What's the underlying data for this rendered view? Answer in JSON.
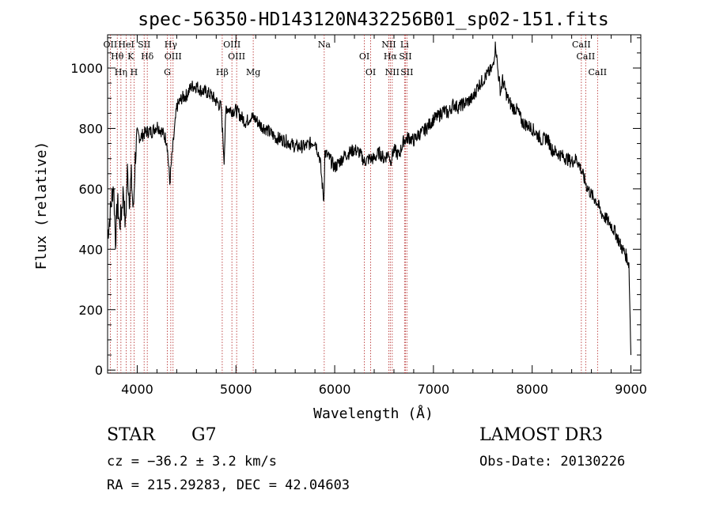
{
  "chart_data": {
    "type": "line",
    "title": "spec-56350-HD143120N432256B01_sp02-151.fits",
    "xlabel": "Wavelength (Å)",
    "ylabel": "Flux (relative)",
    "xlim": [
      3700,
      9100
    ],
    "ylim": [
      -10,
      1110
    ],
    "xticks": [
      4000,
      5000,
      6000,
      7000,
      8000,
      9000
    ],
    "yticks": [
      0,
      200,
      400,
      600,
      800,
      1000
    ],
    "grid": false,
    "series": [
      {
        "x": [
          3700,
          3720,
          3740,
          3760,
          3780,
          3800,
          3820,
          3840,
          3860,
          3880,
          3900,
          3920,
          3940,
          3960,
          3980,
          4000,
          4030,
          4060,
          4100,
          4150,
          4200,
          4250,
          4300,
          4330,
          4350,
          4400,
          4450,
          4500,
          4550,
          4600,
          4650,
          4700,
          4750,
          4800,
          4850,
          4880,
          4900,
          4950,
          5000,
          5050,
          5100,
          5150,
          5200,
          5250,
          5300,
          5400,
          5500,
          5600,
          5700,
          5800,
          5850,
          5890,
          5900,
          5950,
          6000,
          6050,
          6100,
          6150,
          6200,
          6250,
          6300,
          6350,
          6400,
          6450,
          6500,
          6550,
          6563,
          6600,
          6650,
          6700,
          6750,
          6800,
          6850,
          6900,
          6950,
          7000,
          7050,
          7100,
          7150,
          7200,
          7250,
          7300,
          7350,
          7400,
          7450,
          7500,
          7550,
          7600,
          7630,
          7650,
          7680,
          7700,
          7750,
          7800,
          7850,
          7900,
          7950,
          8000,
          8050,
          8100,
          8150,
          8200,
          8250,
          8300,
          8350,
          8400,
          8450,
          8500,
          8550,
          8600,
          8650,
          8700,
          8750,
          8800,
          8850,
          8900,
          8950,
          8980,
          9000
        ],
        "y": [
          450,
          500,
          560,
          620,
          430,
          560,
          480,
          520,
          600,
          470,
          660,
          570,
          640,
          520,
          700,
          780,
          770,
          780,
          790,
          790,
          810,
          790,
          760,
          620,
          700,
          870,
          900,
          910,
          940,
          940,
          925,
          920,
          910,
          890,
          870,
          700,
          870,
          860,
          860,
          840,
          820,
          840,
          830,
          810,
          800,
          770,
          760,
          740,
          740,
          760,
          700,
          560,
          720,
          700,
          670,
          690,
          710,
          720,
          730,
          720,
          690,
          700,
          700,
          720,
          700,
          720,
          690,
          730,
          710,
          760,
          770,
          760,
          780,
          790,
          810,
          830,
          840,
          860,
          850,
          880,
          870,
          880,
          890,
          900,
          940,
          960,
          980,
          1000,
          1080,
          1000,
          920,
          960,
          900,
          870,
          860,
          820,
          810,
          800,
          780,
          760,
          770,
          730,
          720,
          710,
          700,
          690,
          700,
          660,
          610,
          580,
          560,
          520,
          500,
          480,
          450,
          410,
          380,
          350,
          50
        ]
      }
    ],
    "lines": [
      {
        "name": "OII",
        "x": 3727
      },
      {
        "name": "Hθ",
        "x": 3798
      },
      {
        "name": "Hη",
        "x": 3835
      },
      {
        "name": "HeI",
        "x": 3889
      },
      {
        "name": "K",
        "x": 3934
      },
      {
        "name": "H",
        "x": 3968
      },
      {
        "name": "SII",
        "x": 4070
      },
      {
        "name": "Hδ",
        "x": 4102
      },
      {
        "name": "G",
        "x": 4305
      },
      {
        "name": "Hγ",
        "x": 4340
      },
      {
        "name": "OIII",
        "x": 4363
      },
      {
        "name": "Hβ",
        "x": 4861
      },
      {
        "name": "OIII",
        "x": 4959
      },
      {
        "name": "OIII",
        "x": 5007
      },
      {
        "name": "Mg",
        "x": 5175
      },
      {
        "name": "Na",
        "x": 5894
      },
      {
        "name": "OI",
        "x": 6300
      },
      {
        "name": "OI",
        "x": 6364
      },
      {
        "name": "NII",
        "x": 6548
      },
      {
        "name": "Hα",
        "x": 6563
      },
      {
        "name": "NII",
        "x": 6583
      },
      {
        "name": "Li",
        "x": 6707
      },
      {
        "name": "SII",
        "x": 6716
      },
      {
        "name": "SII",
        "x": 6731
      },
      {
        "name": "CaII",
        "x": 8498
      },
      {
        "name": "CaII",
        "x": 8542
      },
      {
        "name": "CaII",
        "x": 8662
      }
    ]
  },
  "info": {
    "class": "STAR",
    "subclass": "G7",
    "survey": "LAMOST DR3",
    "cz": "cz = −36.2 ± 3.2 km/s",
    "obs_date": "Obs-Date: 20130226",
    "radec": "RA = 215.29283, DEC =  42.04603"
  }
}
